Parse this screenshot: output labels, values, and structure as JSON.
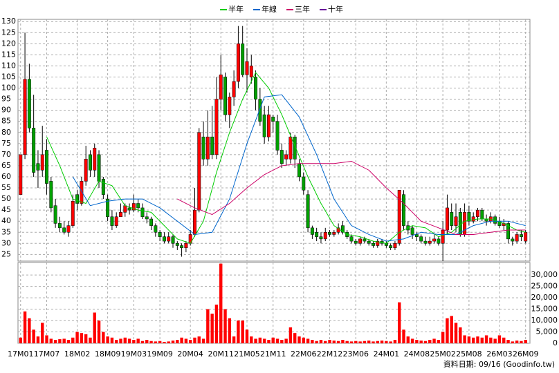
{
  "chart_data": {
    "type": "candlestick",
    "xticks": [
      {
        "value": 0,
        "label": "17M01"
      },
      {
        "value": 6,
        "label": "17M07"
      },
      {
        "value": 13,
        "label": "18M02"
      },
      {
        "value": 20,
        "label": "18M09"
      },
      {
        "value": 26,
        "label": "19M03"
      },
      {
        "value": 32,
        "label": "19M09"
      },
      {
        "value": 39,
        "label": "20M04"
      },
      {
        "value": 46,
        "label": "20M11"
      },
      {
        "value": 52,
        "label": "21M05"
      },
      {
        "value": 58,
        "label": "21M11"
      },
      {
        "value": 65,
        "label": "22M06"
      },
      {
        "value": 71,
        "label": "22M12"
      },
      {
        "value": 77,
        "label": "23M06"
      },
      {
        "value": 84,
        "label": "24M01"
      },
      {
        "value": 91,
        "label": "24M08"
      },
      {
        "value": 97,
        "label": "25M02"
      },
      {
        "value": 103,
        "label": "25M08"
      },
      {
        "value": 110,
        "label": "26M03"
      },
      {
        "value": 116,
        "label": "26M09"
      }
    ],
    "xlim": [
      -0.6,
      117
    ],
    "ylim": [
      22,
      131
    ],
    "yticks": [
      25,
      30,
      35,
      40,
      45,
      50,
      55,
      60,
      65,
      70,
      75,
      80,
      85,
      90,
      95,
      100,
      105,
      110,
      115,
      120,
      125,
      130
    ],
    "up_color": "#ff0000",
    "down_color": "#00a000",
    "grid": true,
    "candles": {
      "open": [
        52,
        70,
        104,
        82,
        66,
        63,
        72,
        58,
        47,
        39,
        37,
        35,
        38,
        52,
        48,
        58,
        70,
        63,
        70,
        59,
        50,
        42,
        38,
        42,
        44,
        46,
        45,
        48,
        46,
        42,
        41,
        38,
        35,
        33,
        31,
        33,
        30,
        29,
        28,
        30,
        34,
        45,
        78,
        68,
        78,
        70,
        95,
        105,
        88,
        96,
        103,
        120,
        106,
        105,
        105,
        95,
        88,
        78,
        87,
        85,
        72,
        68,
        68,
        78,
        66,
        60,
        52,
        37,
        35,
        33,
        32,
        35,
        34,
        35,
        38,
        35,
        33,
        31,
        30,
        32,
        31,
        30,
        29,
        31,
        30,
        29,
        28,
        30,
        52,
        38,
        37,
        34,
        33,
        31,
        30,
        31,
        32,
        30,
        36,
        44,
        38,
        44,
        34,
        44,
        40,
        42,
        45,
        41,
        40,
        42,
        40,
        38,
        39,
        32,
        31,
        34,
        31
      ],
      "high": [
        70,
        125,
        111,
        97,
        72,
        83,
        77,
        60,
        50,
        42,
        40,
        40,
        52,
        54,
        60,
        74,
        72,
        75,
        72,
        60,
        52,
        45,
        44,
        48,
        48,
        48,
        52,
        50,
        48,
        44,
        42,
        39,
        36,
        35,
        35,
        34,
        31,
        30,
        31,
        36,
        55,
        82,
        85,
        90,
        92,
        105,
        115,
        107,
        98,
        108,
        128,
        128,
        118,
        115,
        108,
        100,
        92,
        92,
        88,
        88,
        75,
        72,
        80,
        79,
        68,
        62,
        54,
        38,
        37,
        35,
        37,
        36,
        36,
        39,
        40,
        36,
        34,
        32,
        33,
        33,
        32,
        31,
        32,
        32,
        31,
        30,
        31,
        54,
        54,
        40,
        38,
        35,
        34,
        33,
        33,
        34,
        33,
        40,
        52,
        48,
        48,
        46,
        48,
        47,
        44,
        46,
        46,
        43,
        44,
        43,
        42,
        41,
        40,
        33,
        35,
        36,
        36
      ],
      "low": [
        52,
        68,
        80,
        60,
        55,
        60,
        52,
        44,
        37,
        35,
        34,
        33,
        37,
        45,
        47,
        56,
        60,
        60,
        55,
        50,
        40,
        36,
        37,
        42,
        42,
        43,
        44,
        44,
        41,
        39,
        36,
        33,
        31,
        30,
        30,
        28,
        27,
        24,
        26,
        29,
        33,
        44,
        65,
        65,
        68,
        68,
        90,
        85,
        82,
        92,
        100,
        105,
        98,
        102,
        90,
        83,
        75,
        76,
        80,
        70,
        64,
        65,
        66,
        64,
        58,
        52,
        35,
        32,
        31,
        30,
        31,
        33,
        33,
        34,
        34,
        32,
        30,
        29,
        29,
        30,
        29,
        28,
        28,
        29,
        28,
        27,
        27,
        29,
        36,
        34,
        32,
        31,
        30,
        29,
        29,
        30,
        29,
        22,
        34,
        36,
        35,
        33,
        33,
        38,
        39,
        40,
        40,
        38,
        39,
        38,
        37,
        36,
        30,
        29,
        30,
        31,
        30
      ],
      "close": [
        70,
        104,
        82,
        62,
        63,
        70,
        57,
        46,
        39,
        37,
        35,
        38,
        49,
        48,
        58,
        68,
        63,
        73,
        58,
        52,
        42,
        38,
        42,
        44,
        47,
        45,
        48,
        46,
        42,
        41,
        38,
        35,
        33,
        31,
        33,
        30,
        29,
        28,
        30,
        34,
        45,
        80,
        68,
        78,
        70,
        95,
        106,
        88,
        96,
        103,
        120,
        106,
        112,
        110,
        95,
        85,
        78,
        88,
        85,
        72,
        66,
        70,
        78,
        68,
        60,
        54,
        37,
        34,
        33,
        32,
        35,
        34,
        35,
        37,
        35,
        33,
        31,
        30,
        32,
        31,
        30,
        29,
        31,
        30,
        29,
        28,
        30,
        54,
        38,
        36,
        34,
        33,
        31,
        30,
        31,
        32,
        30,
        36,
        46,
        38,
        42,
        34,
        44,
        40,
        42,
        45,
        41,
        40,
        42,
        39,
        38,
        39,
        32,
        31,
        34,
        33,
        35
      ]
    },
    "series": [
      {
        "name": "半年",
        "color": "#00cc00",
        "x": [
          6,
          9,
          12,
          15,
          18,
          21,
          24,
          27,
          30,
          33,
          36,
          39,
          42,
          45,
          48,
          51,
          54,
          57,
          60,
          63,
          66,
          69,
          72,
          75,
          78,
          81,
          84,
          87,
          90,
          93,
          96,
          99,
          102,
          105,
          108,
          111,
          114,
          116
        ],
        "values": [
          78,
          65,
          50,
          48,
          58,
          56,
          47,
          45,
          44,
          38,
          32,
          30,
          40,
          62,
          80,
          95,
          107,
          100,
          88,
          74,
          60,
          48,
          38,
          34,
          33,
          31,
          30,
          35,
          38,
          37,
          33,
          35,
          40,
          41,
          41,
          39,
          36,
          35
        ]
      },
      {
        "name": "年線",
        "color": "#0066cc",
        "x": [
          12,
          16,
          20,
          24,
          28,
          32,
          36,
          40,
          44,
          48,
          52,
          56,
          60,
          64,
          68,
          72,
          76,
          80,
          84,
          88,
          92,
          96,
          100,
          104,
          108,
          112,
          116
        ],
        "values": [
          60,
          47,
          49,
          50,
          50,
          46,
          40,
          34,
          35,
          50,
          75,
          96,
          97,
          87,
          70,
          50,
          38,
          34,
          31,
          32,
          35,
          34,
          34,
          38,
          40,
          40,
          38
        ]
      },
      {
        "name": "三年",
        "color": "#cc0066",
        "x": [
          36,
          40,
          44,
          48,
          52,
          56,
          60,
          64,
          68,
          72,
          76,
          80,
          84,
          88,
          92,
          96,
          100,
          104,
          108,
          112,
          116
        ],
        "values": [
          50,
          46,
          43,
          48,
          55,
          61,
          65,
          66,
          66,
          66,
          67,
          63,
          55,
          48,
          40,
          37,
          34,
          34,
          35,
          36,
          36
        ]
      },
      {
        "name": "十年",
        "color": "#660099",
        "x": [],
        "values": []
      }
    ],
    "volume": {
      "color": "#ff0000",
      "ylim": [
        0,
        35500
      ],
      "yticks": [
        0,
        {
          "value": 5000,
          "label": "5,000"
        },
        {
          "value": 10000,
          "label": "10,000"
        },
        {
          "value": 15000,
          "label": "15,000"
        },
        {
          "value": 20000,
          "label": "20,000"
        },
        {
          "value": 25000,
          "label": "25,000"
        },
        {
          "value": 30000,
          "label": "30,000"
        }
      ],
      "values": [
        2500,
        14000,
        11000,
        6000,
        3000,
        9000,
        3500,
        2000,
        1500,
        1800,
        2000,
        1500,
        2500,
        5000,
        4500,
        4000,
        2500,
        13500,
        10000,
        5000,
        3000,
        2500,
        1500,
        2000,
        2500,
        2000,
        1500,
        2000,
        1000,
        1500,
        1000,
        800,
        1000,
        600,
        800,
        1200,
        1500,
        2500,
        2000,
        1500,
        2500,
        3000,
        2000,
        15000,
        13000,
        17000,
        35000,
        15000,
        11000,
        3000,
        10000,
        10000,
        6000,
        3000,
        2000,
        2500,
        2000,
        1500,
        2500,
        2000,
        1500,
        2000,
        7000,
        4500,
        3000,
        2500,
        2000,
        1500,
        1000,
        1500,
        1000,
        1500,
        1200,
        1000,
        1500,
        1000,
        800,
        1000,
        800,
        1000,
        1200,
        800,
        1000,
        1200,
        1000,
        800,
        1500,
        18000,
        6000,
        3000,
        2000,
        1500,
        1200,
        1000,
        1500,
        2000,
        1500,
        5000,
        11000,
        12000,
        9000,
        7000,
        3500,
        3000,
        2500,
        3000,
        2500,
        3500,
        2500,
        2000,
        3500,
        2500,
        1500,
        800,
        1200,
        1000,
        1500
      ]
    },
    "footer": "資料日期: 09/16 (Goodinfo.tw)"
  }
}
